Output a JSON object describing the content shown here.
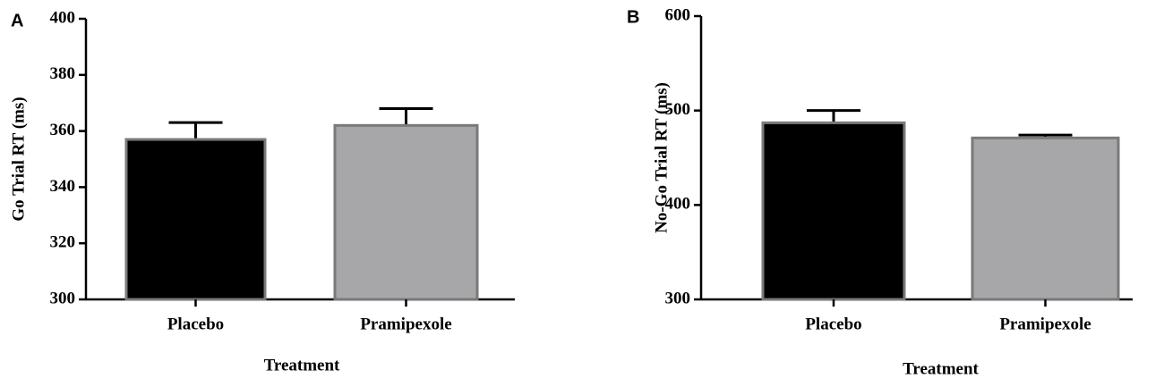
{
  "chart_data": [
    {
      "type": "bar",
      "panel": "A",
      "ylabel": "Go  Trial RT (ms)",
      "xlabel": "Treatment",
      "categories": [
        "Placebo",
        "Pramipexole"
      ],
      "values": [
        357,
        362
      ],
      "errors": [
        6,
        6
      ],
      "colors": [
        "#000000",
        "#a7a7a9"
      ],
      "ylim": [
        300,
        400
      ],
      "yticks": [
        300,
        320,
        340,
        360,
        380,
        400
      ]
    },
    {
      "type": "bar",
      "panel": "B",
      "ylabel": "No-Go  Trial  RT (ms)",
      "xlabel": "Treatment",
      "categories": [
        "Placebo",
        "Pramipexole"
      ],
      "values": [
        487,
        471
      ],
      "errors": [
        13,
        3
      ],
      "colors": [
        "#000000",
        "#a7a7a9"
      ],
      "ylim": [
        300,
        600
      ],
      "yticks": [
        300,
        400,
        500,
        600
      ]
    }
  ]
}
